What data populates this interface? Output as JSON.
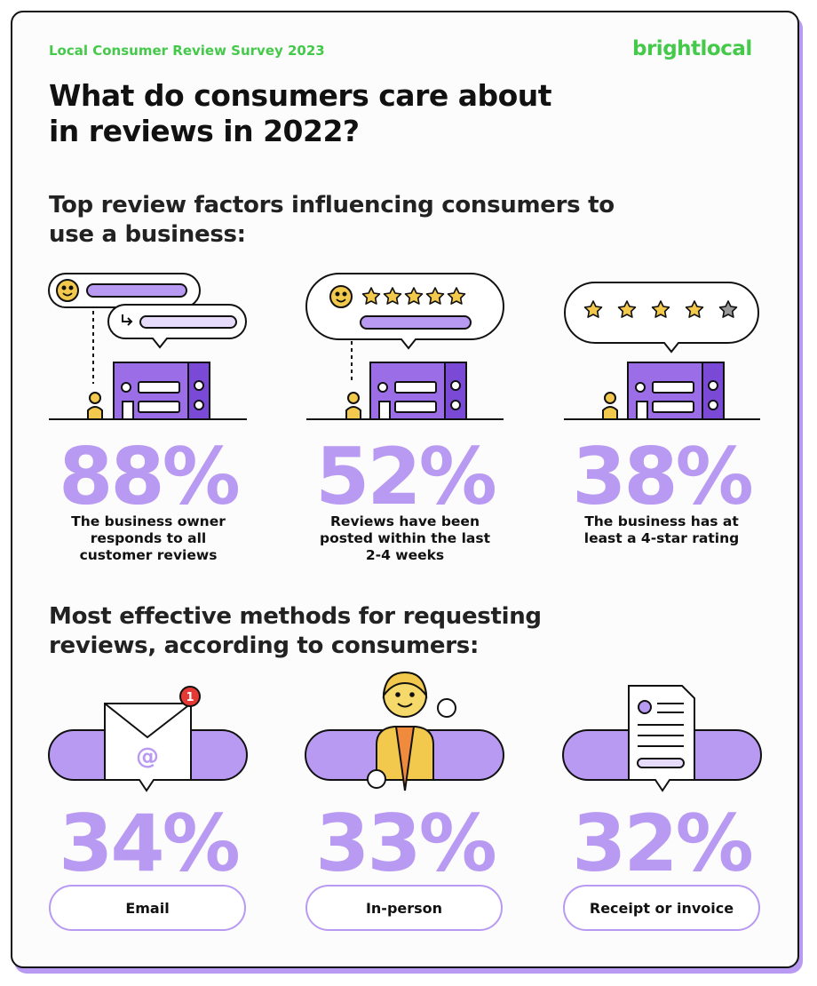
{
  "header": {
    "kicker": "Local Consumer Review Survey 2023",
    "logo": "brightlocal",
    "title": "What do consumers care about in reviews in 2022?"
  },
  "sections": [
    {
      "heading": "Top review factors influencing consumers to use a business:",
      "items": [
        {
          "stat": "88%",
          "label": "The business owner responds to all customer reviews"
        },
        {
          "stat": "52%",
          "label": "Reviews have been posted within the last 2-4 weeks"
        },
        {
          "stat": "38%",
          "label": "The business has at least a 4-star rating"
        }
      ]
    },
    {
      "heading": "Most effective methods for requesting reviews, according to consumers:",
      "items": [
        {
          "stat": "34%",
          "label": "Email",
          "badge": "1",
          "icon_text": "@"
        },
        {
          "stat": "33%",
          "label": "In-person"
        },
        {
          "stat": "32%",
          "label": "Receipt or invoice"
        }
      ]
    }
  ]
}
